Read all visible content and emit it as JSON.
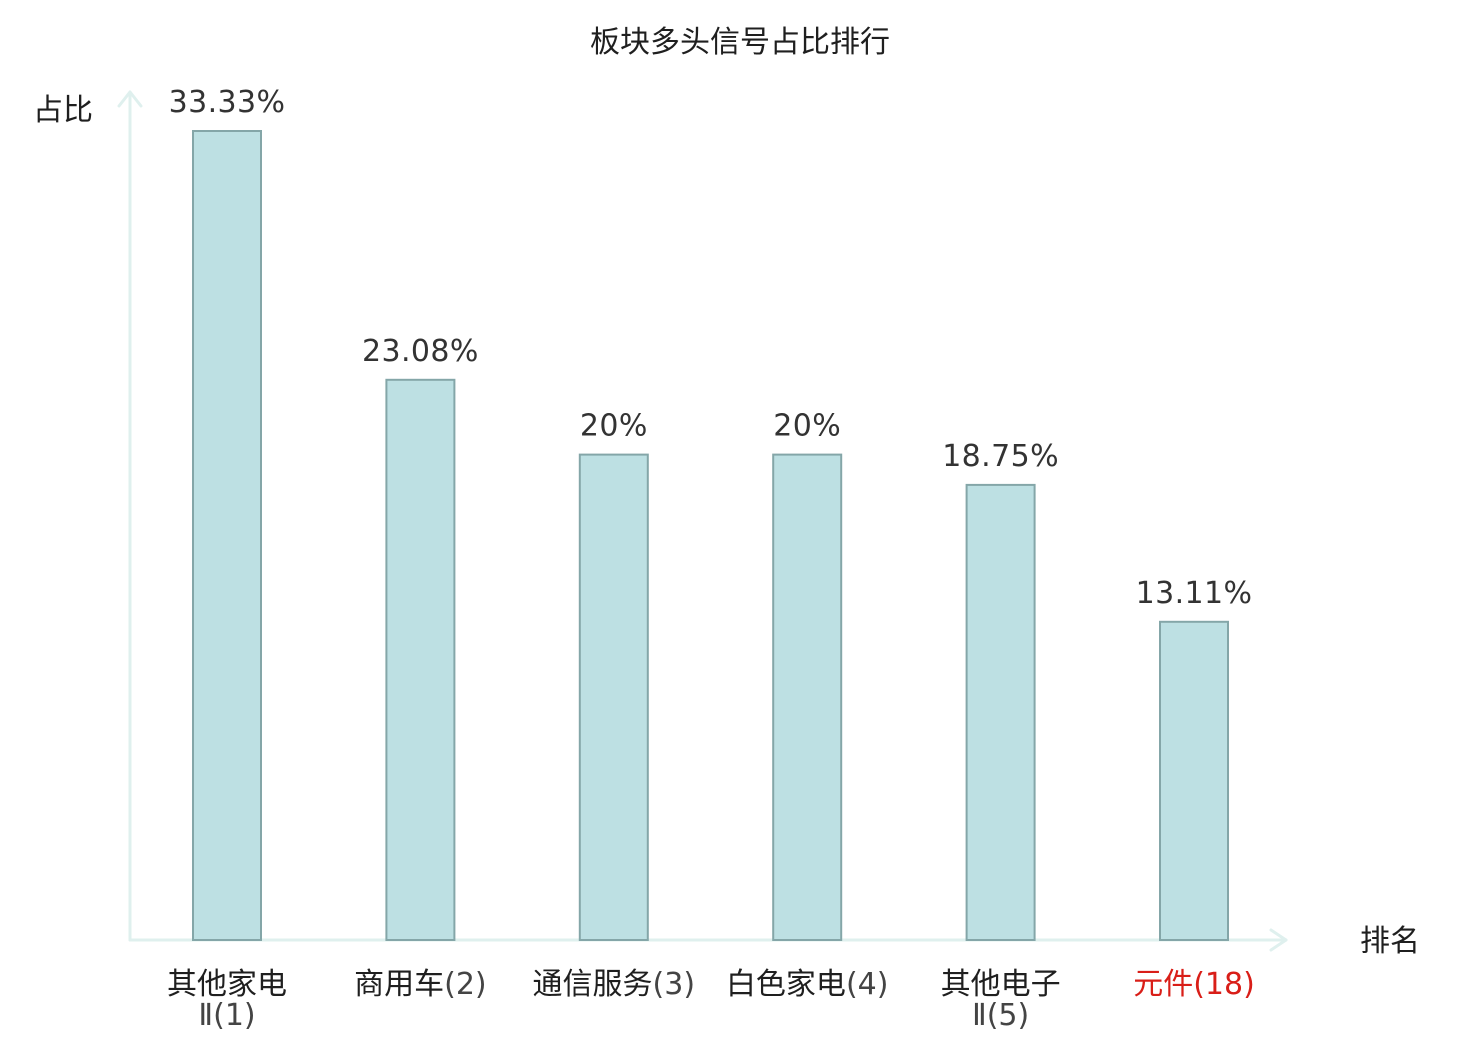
{
  "chart_data": {
    "type": "bar",
    "title": "板块多头信号占比排行",
    "ylabel": "占比",
    "xlabel": "排名",
    "grid": false,
    "ylim": [
      0,
      33.33
    ],
    "bars": [
      {
        "name": "其他家电Ⅱ",
        "rank": "(1)",
        "value": 33.33,
        "label": "33.33%",
        "highlight": false
      },
      {
        "name": "商用车",
        "rank": "(2)",
        "value": 23.08,
        "label": "23.08%",
        "highlight": false
      },
      {
        "name": "通信服务",
        "rank": "(3)",
        "value": 20,
        "label": "20%",
        "highlight": false
      },
      {
        "name": "白色家电",
        "rank": "(4)",
        "value": 20,
        "label": "20%",
        "highlight": false
      },
      {
        "name": "其他电子Ⅱ",
        "rank": "(5)",
        "value": 18.75,
        "label": "18.75%",
        "highlight": false
      },
      {
        "name": "元件",
        "rank": "(18)",
        "value": 13.11,
        "label": "13.11%",
        "highlight": true
      }
    ],
    "colors": {
      "bar_fill": "#bde0e3",
      "bar_stroke": "#84a6a8",
      "axis": "#dff0ee",
      "highlight_label": "#d91e18"
    }
  }
}
